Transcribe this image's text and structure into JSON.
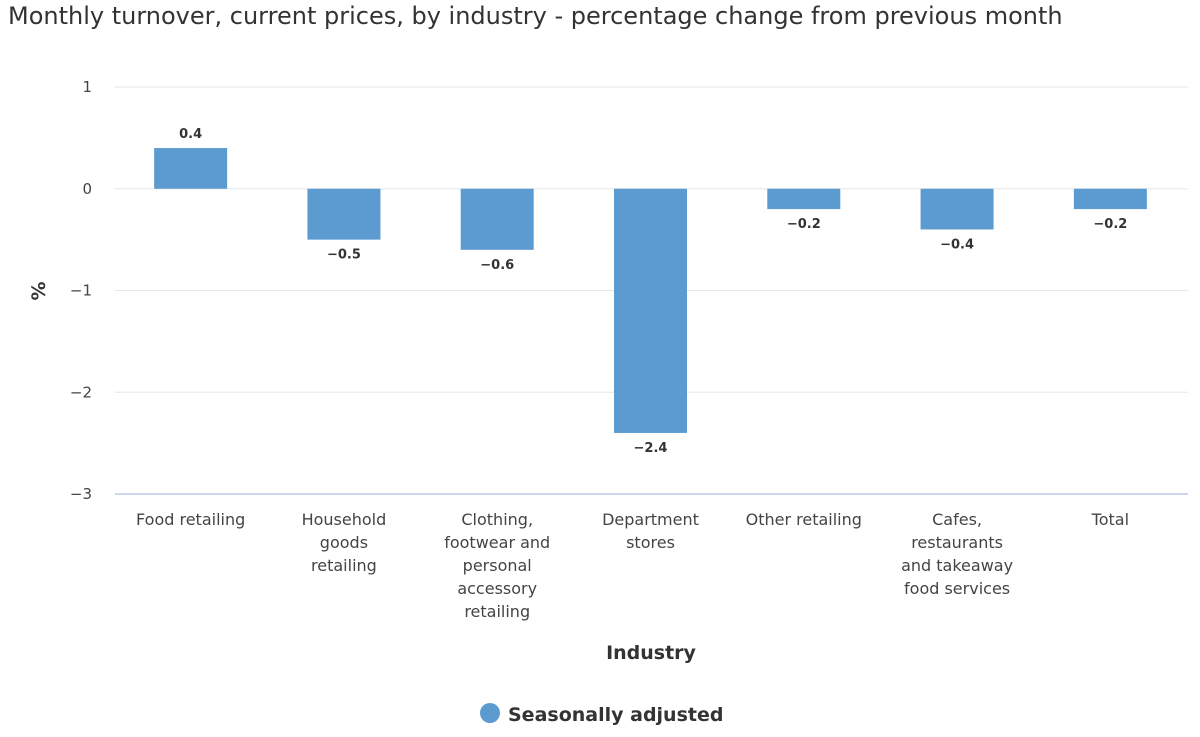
{
  "chart_data": {
    "type": "bar",
    "title": "Monthly turnover, current prices, by industry - percentage change from previous month",
    "xlabel": "Industry",
    "ylabel": "%",
    "ylim": [
      -3,
      1
    ],
    "yticks": [
      "1",
      "0",
      "-1",
      "-2",
      "-3"
    ],
    "categories": [
      "Food retailing",
      "Household goods retailing",
      "Clothing, footwear and personal accessory retailing",
      "Department stores",
      "Other retailing",
      "Cafes, restaurants and takeaway food services",
      "Total"
    ],
    "category_lines": [
      [
        "Food retailing"
      ],
      [
        "Household",
        "goods",
        "retailing"
      ],
      [
        "Clothing,",
        "footwear and",
        "personal",
        "accessory",
        "retailing"
      ],
      [
        "Department",
        "stores"
      ],
      [
        "Other retailing"
      ],
      [
        "Cafes,",
        "restaurants",
        "and takeaway",
        "food services"
      ],
      [
        "Total"
      ]
    ],
    "series": [
      {
        "name": "Seasonally adjusted",
        "values": [
          0.4,
          -0.5,
          -0.6,
          -2.4,
          -0.2,
          -0.4,
          -0.2
        ],
        "labels": [
          "0.4",
          "−0.5",
          "−0.6",
          "−2.4",
          "−0.2",
          "−0.4",
          "−0.2"
        ]
      }
    ],
    "colors": {
      "bar": "#5b9bd0",
      "grid": "#e6e6e6",
      "baseline": "#ccd6eb"
    },
    "grid": true,
    "legend": "bottom-center"
  }
}
